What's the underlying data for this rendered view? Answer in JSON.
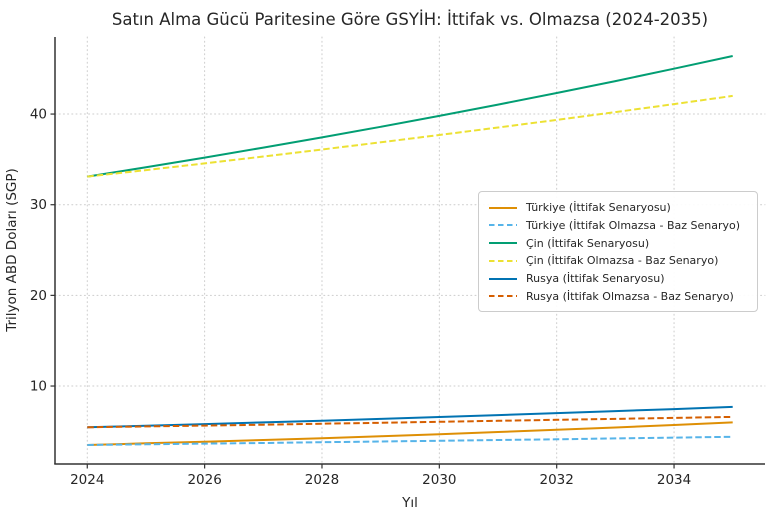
{
  "chart_data": {
    "type": "line",
    "title": "Satın Alma Gücü Paritesine Göre GSYİH: İttifak vs. Olmazsa (2024-2035)",
    "xlabel": "Yıl",
    "ylabel": "Trilyon ABD Doları (SGP)",
    "x": [
      2024,
      2025,
      2026,
      2027,
      2028,
      2029,
      2030,
      2031,
      2032,
      2033,
      2034,
      2035
    ],
    "xticks": [
      2024,
      2026,
      2028,
      2030,
      2032,
      2034
    ],
    "yticks": [
      10,
      20,
      30,
      40
    ],
    "xlim": [
      2023.45,
      2035.55
    ],
    "ylim": [
      1.4,
      48.5
    ],
    "grid": "dotted",
    "grid_color": "#cccccc",
    "axis_color": "#333333",
    "tick_label_color": "#262626",
    "legend_position": "center right",
    "series": [
      {
        "name": "Türkiye (İttifak Senaryosu)",
        "color": "#de8f05",
        "style": "solid",
        "values": [
          3.5,
          3.68,
          3.86,
          4.05,
          4.25,
          4.47,
          4.69,
          4.93,
          5.17,
          5.43,
          5.7,
          5.99
        ]
      },
      {
        "name": "Türkiye (İttifak Olmazsa - Baz Senaryo)",
        "color": "#56b4e9",
        "style": "dashed",
        "values": [
          3.5,
          3.57,
          3.65,
          3.72,
          3.8,
          3.88,
          3.96,
          4.05,
          4.13,
          4.22,
          4.31,
          4.4
        ]
      },
      {
        "name": "Çin (İttifak Senaryosu)",
        "color": "#029e73",
        "style": "solid",
        "values": [
          33.1,
          34.13,
          35.2,
          36.3,
          37.43,
          38.6,
          39.8,
          41.04,
          42.32,
          43.64,
          45.0,
          46.4
        ]
      },
      {
        "name": "Çin (İttifak Olmazsa - Baz Senaryo)",
        "color": "#ece133",
        "style": "dashed",
        "values": [
          33.1,
          33.82,
          34.56,
          35.32,
          36.09,
          36.88,
          37.69,
          38.52,
          39.36,
          40.22,
          41.1,
          42.0
        ]
      },
      {
        "name": "Rusya (İttifak Senaryosu)",
        "color": "#0173b2",
        "style": "solid",
        "values": [
          5.45,
          5.62,
          5.8,
          5.99,
          6.18,
          6.38,
          6.58,
          6.79,
          7.01,
          7.23,
          7.46,
          7.7
        ]
      },
      {
        "name": "Rusya (İttifak Olmazsa - Baz Senaryo)",
        "color": "#d55e00",
        "style": "dashed",
        "values": [
          5.45,
          5.55,
          5.64,
          5.74,
          5.84,
          5.95,
          6.05,
          6.16,
          6.27,
          6.38,
          6.49,
          6.6
        ]
      }
    ]
  }
}
